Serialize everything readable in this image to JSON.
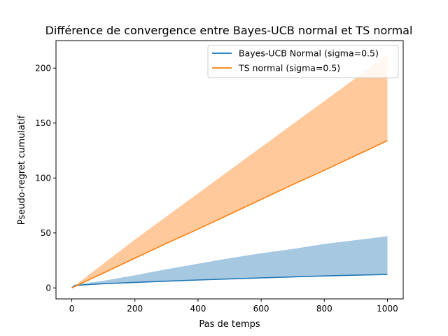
{
  "chart_data": {
    "type": "line",
    "title": "Différence de convergence entre Bayes-UCB normal et TS normal",
    "xlabel": "Pas de temps",
    "ylabel": "Pseudo-regret cumulatif",
    "xlim": [
      -50,
      1050
    ],
    "ylim": [
      -10,
      225
    ],
    "xticks": [
      0,
      200,
      400,
      600,
      800,
      1000
    ],
    "yticks": [
      0,
      50,
      100,
      150,
      200
    ],
    "grid": false,
    "legend_position": "top-right",
    "series": [
      {
        "name": "Bayes-UCB Normal (sigma=0.5)",
        "color": "#1f77b4",
        "band_color": "#a6c8e0",
        "x": [
          0,
          10,
          50,
          100,
          200,
          300,
          400,
          500,
          600,
          700,
          800,
          900,
          1000
        ],
        "values": [
          0,
          2.2,
          3,
          3.8,
          5,
          6.1,
          7.2,
          8.2,
          9.1,
          10.0,
          10.9,
          11.6,
          12.2
        ],
        "band_lower": [
          0,
          2.2,
          3,
          3.8,
          5,
          6.1,
          7.2,
          8.2,
          9.1,
          10.0,
          10.9,
          11.6,
          12.2
        ],
        "band_upper": [
          0,
          3.0,
          4.5,
          6.5,
          11.5,
          17,
          22,
          27,
          31.5,
          35.5,
          40,
          43.5,
          47
        ]
      },
      {
        "name": "TS normal (sigma=0.5)",
        "color": "#ff7f0e",
        "band_color": "#ffc99c",
        "x": [
          0,
          100,
          200,
          300,
          400,
          500,
          600,
          700,
          800,
          900,
          1000
        ],
        "values": [
          0,
          13.5,
          27,
          40.5,
          53.5,
          67,
          80.5,
          94,
          107,
          120.5,
          134
        ],
        "band_lower": [
          0,
          13.5,
          27,
          40.5,
          53.5,
          67,
          80.5,
          94,
          107,
          120.5,
          134
        ],
        "band_upper": [
          0,
          22,
          44,
          65,
          86,
          107,
          128,
          149,
          170,
          191,
          212
        ]
      }
    ]
  }
}
